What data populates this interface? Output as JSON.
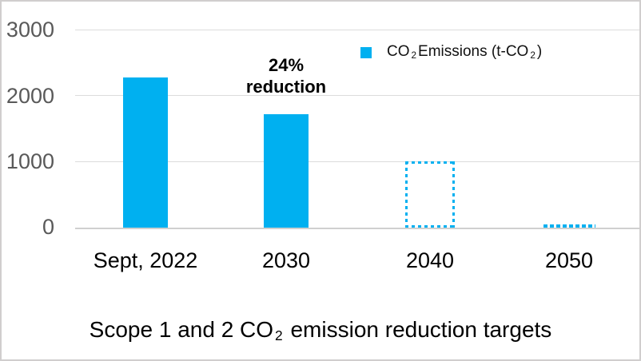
{
  "chart_data": {
    "type": "bar",
    "title": {
      "prefix": "Scope 1 and 2 CO",
      "sub": "2",
      "suffix": " emission reduction targets"
    },
    "legend": {
      "prefix": "CO",
      "sub1": "2",
      "mid": "Emissions (t-CO",
      "sub2": "2",
      "suffix": ")"
    },
    "categories": [
      "Sept, 2022",
      "2030",
      "2040",
      "2050"
    ],
    "values": [
      2270,
      1725,
      1000,
      30
    ],
    "bar_styles": [
      "solid",
      "solid",
      "dashed-outline",
      "dashed-line"
    ],
    "annotation": {
      "text": "24%\nreduction",
      "target_category": "2030"
    },
    "y_ticks": [
      0,
      1000,
      2000,
      3000
    ],
    "ylim": [
      0,
      3000
    ],
    "xlabel": "",
    "ylabel": "",
    "grid": true,
    "legend_position": "top-right",
    "notes": "2040 and 2050 bars are dashed-outline targets; 2050 is approximately zero (dashed line at axis)",
    "colors": {
      "series": "#00b0f0",
      "gridline": "#dcdcdc",
      "axis_line": "#d0d0d0",
      "y_tick_text": "#595959",
      "x_tick_text": "#000000",
      "frame_border": "#d0cece"
    }
  }
}
